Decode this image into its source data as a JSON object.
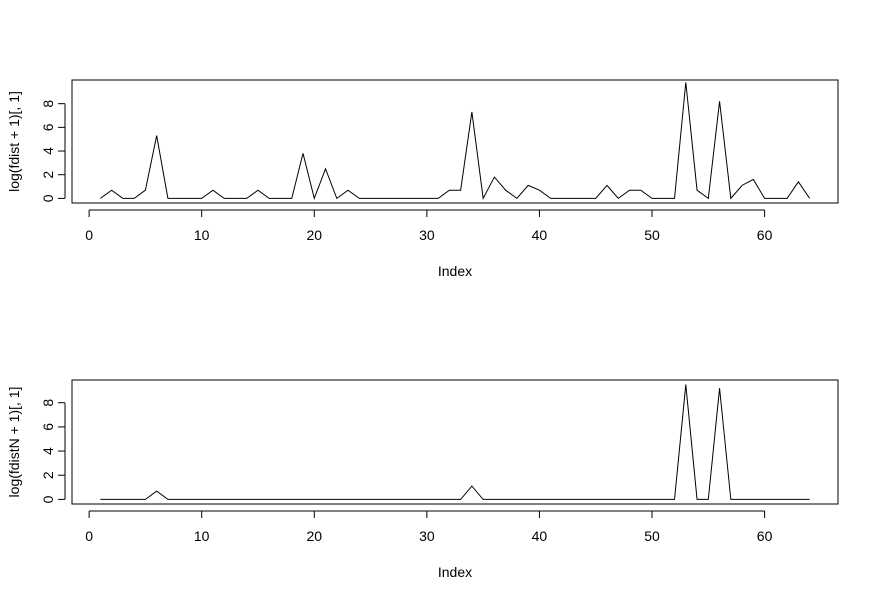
{
  "chart_data": [
    {
      "type": "line",
      "xlabel": "Index",
      "ylabel": "log(fdist + 1)[, 1]",
      "x": [
        1,
        2,
        3,
        4,
        5,
        6,
        7,
        8,
        9,
        10,
        11,
        12,
        13,
        14,
        15,
        16,
        17,
        18,
        19,
        20,
        21,
        22,
        23,
        24,
        25,
        26,
        27,
        28,
        29,
        30,
        31,
        32,
        33,
        34,
        35,
        36,
        37,
        38,
        39,
        40,
        41,
        42,
        43,
        44,
        45,
        46,
        47,
        48,
        49,
        50,
        51,
        52,
        53,
        54,
        55,
        56,
        57,
        58,
        59,
        60,
        61,
        62,
        63,
        64
      ],
      "series": [
        {
          "color": "#000000",
          "values": [
            0,
            0.69,
            0,
            0,
            0.69,
            5.3,
            0,
            0,
            0,
            0,
            0.69,
            0,
            0,
            0,
            0.69,
            0,
            0,
            0,
            3.8,
            0,
            2.5,
            0,
            0.69,
            0,
            0,
            0,
            0,
            0,
            0,
            0,
            0,
            0.69,
            0.69,
            7.3,
            0,
            1.8,
            0.69,
            0,
            1.1,
            0.69,
            0,
            0,
            0,
            0,
            0,
            1.1,
            0,
            0.69,
            0.69,
            0,
            0,
            0,
            9.8,
            0.69,
            0,
            8.2,
            0,
            1.1,
            1.6,
            0,
            0,
            0,
            1.4,
            0
          ]
        }
      ],
      "xlim": [
        -1.52,
        66.52
      ],
      "xticks": [
        0,
        10,
        20,
        30,
        40,
        50,
        60
      ],
      "ylim": [
        -0.39,
        10.0
      ],
      "yticks": [
        0,
        2,
        4,
        6,
        8
      ]
    },
    {
      "type": "line",
      "xlabel": "Index",
      "ylabel": "log(fdistN + 1)[, 1]",
      "x": [
        1,
        2,
        3,
        4,
        5,
        6,
        7,
        8,
        9,
        10,
        11,
        12,
        13,
        14,
        15,
        16,
        17,
        18,
        19,
        20,
        21,
        22,
        23,
        24,
        25,
        26,
        27,
        28,
        29,
        30,
        31,
        32,
        33,
        34,
        35,
        36,
        37,
        38,
        39,
        40,
        41,
        42,
        43,
        44,
        45,
        46,
        47,
        48,
        49,
        50,
        51,
        52,
        53,
        54,
        55,
        56,
        57,
        58,
        59,
        60,
        61,
        62,
        63,
        64
      ],
      "series": [
        {
          "color": "#000000",
          "values": [
            0,
            0,
            0,
            0,
            0,
            0.69,
            0,
            0,
            0,
            0,
            0,
            0,
            0,
            0,
            0,
            0,
            0,
            0,
            0,
            0,
            0,
            0,
            0,
            0,
            0,
            0,
            0,
            0,
            0,
            0,
            0,
            0,
            0,
            1.1,
            0,
            0,
            0,
            0,
            0,
            0,
            0,
            0,
            0,
            0,
            0,
            0,
            0,
            0,
            0,
            0,
            0,
            0,
            9.5,
            0,
            0,
            9.2,
            0,
            0,
            0,
            0,
            0,
            0,
            0,
            0
          ]
        }
      ],
      "xlim": [
        -1.52,
        66.52
      ],
      "xticks": [
        0,
        10,
        20,
        30,
        40,
        50,
        60
      ],
      "ylim": [
        -0.38,
        9.88
      ],
      "yticks": [
        0,
        2,
        4,
        6,
        8
      ]
    }
  ]
}
